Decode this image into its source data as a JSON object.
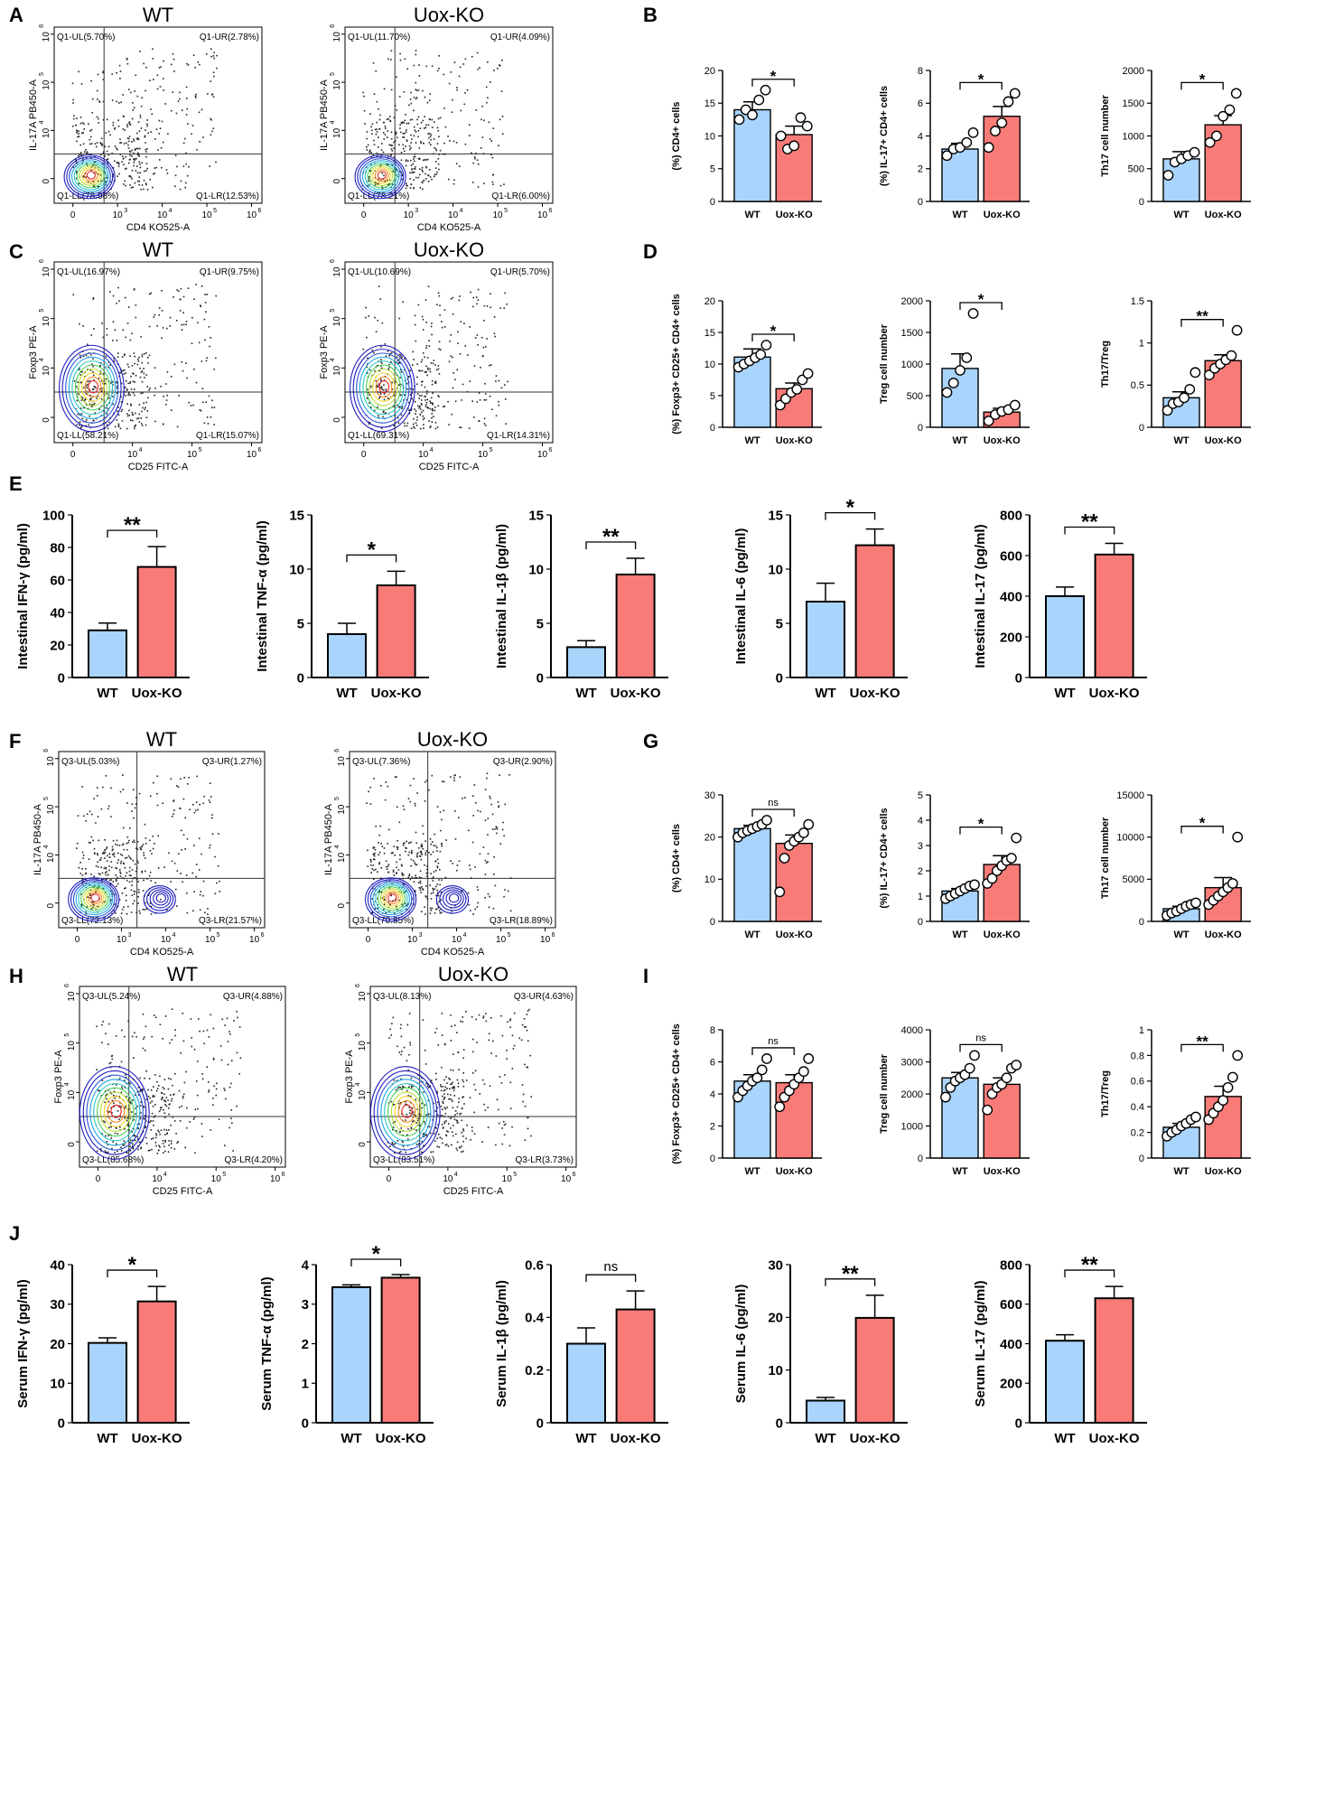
{
  "colors": {
    "wt": "#a9d4fb",
    "ko": "#f87b78",
    "axis": "#000000",
    "flow": "#1d1dbd"
  },
  "chart_data": [
    {
      "type": "flow",
      "panel": "A",
      "title": "WT",
      "xlabel": "CD4 KO525-A",
      "ylabel": "IL-17A PB450-A",
      "quads": {
        "ul": "Q1-UL(5.70%)",
        "ur": "Q1-UR(2.78%)",
        "ll": "Q1-LL(78.98%)",
        "lr": "Q1-LR(12.53%)"
      },
      "xticks": [
        "0",
        "10",
        "10",
        "10",
        "10"
      ],
      "xexp": [
        "",
        "3",
        "4",
        "5",
        "6"
      ],
      "yticks": [
        "0",
        "10",
        "10",
        "10"
      ],
      "yexp": [
        "",
        "4",
        "5",
        "6"
      ],
      "seed": 11,
      "pops": [
        [
          0.17,
          0.15,
          1
        ]
      ]
    },
    {
      "type": "flow",
      "title": "Uox-KO",
      "xlabel": "CD4 KO525-A",
      "ylabel": "IL-17A PB450-A",
      "quads": {
        "ul": "Q1-UL(11.70%)",
        "ur": "Q1-UR(4.09%)",
        "ll": "Q1-LL(78.21%)",
        "lr": "Q1-LR(6.00%)"
      },
      "xticks": [
        "0",
        "10",
        "10",
        "10",
        "10"
      ],
      "xexp": [
        "",
        "3",
        "4",
        "5",
        "6"
      ],
      "yticks": [
        "0",
        "10",
        "10",
        "10"
      ],
      "yexp": [
        "",
        "4",
        "5",
        "6"
      ],
      "seed": 23,
      "pops": [
        [
          0.17,
          0.15,
          1
        ]
      ]
    },
    {
      "type": "flow",
      "panel": "C",
      "title": "WT",
      "xlabel": "CD25 FITC-A",
      "ylabel": "Foxp3 PE-A",
      "quads": {
        "ul": "Q1-UL(16.97%)",
        "ur": "Q1-UR(9.75%)",
        "ll": "Q1-LL(58.21%)",
        "lr": "Q1-LR(15.07%)"
      },
      "xticks": [
        "0",
        "10",
        "10",
        "10"
      ],
      "xexp": [
        "",
        "4",
        "5",
        "6"
      ],
      "yticks": [
        "0",
        "10",
        "10",
        "10"
      ],
      "yexp": [
        "",
        "4",
        "5",
        "6"
      ],
      "seed": 37,
      "pops": [
        [
          0.18,
          0.3,
          1.3
        ]
      ]
    },
    {
      "type": "flow",
      "title": "Uox-KO",
      "xlabel": "CD25 FITC-A",
      "ylabel": "Foxp3 PE-A",
      "quads": {
        "ul": "Q1-UL(10.69%)",
        "ur": "Q1-UR(5.70%)",
        "ll": "Q1-LL(69.31%)",
        "lr": "Q1-LR(14.31%)"
      },
      "xticks": [
        "0",
        "10",
        "10",
        "10"
      ],
      "xexp": [
        "",
        "4",
        "5",
        "6"
      ],
      "yticks": [
        "0",
        "10",
        "10",
        "10"
      ],
      "yexp": [
        "",
        "4",
        "5",
        "6"
      ],
      "seed": 41,
      "pops": [
        [
          0.18,
          0.3,
          1.3
        ]
      ]
    },
    {
      "type": "bar",
      "panel": "B",
      "ylabel_parts": [
        [
          "(%)  CD4",
          ""
        ],
        [
          "+",
          ""
        ],
        [
          " cells",
          ""
        ]
      ],
      "ylabel": "(%)  CD4+ cells",
      "categories": [
        "WT",
        "Uox-KO"
      ],
      "values": [
        14,
        10.2
      ],
      "errors": [
        1.2,
        1.3
      ],
      "ylim": [
        0,
        20
      ],
      "yticks": [
        0,
        5,
        10,
        15,
        20
      ],
      "sig": "*",
      "points": [
        [
          12.5,
          14,
          13.2,
          15.5,
          17
        ],
        [
          10,
          8,
          8.5,
          12.8,
          11.5
        ]
      ]
    },
    {
      "type": "bar",
      "ylabel": "(%)  IL-17+ CD4+ cells",
      "categories": [
        "WT",
        "Uox-KO"
      ],
      "values": [
        3.2,
        5.2
      ],
      "errors": [
        0.35,
        0.6
      ],
      "ylim": [
        0,
        8
      ],
      "yticks": [
        0,
        2,
        4,
        6,
        8
      ],
      "sig": "*",
      "points": [
        [
          2.8,
          3.2,
          3.3,
          3.6,
          4.2
        ],
        [
          3.3,
          4.3,
          4.8,
          6.1,
          6.6
        ]
      ]
    },
    {
      "type": "bar",
      "ylabel": "Th17 cell number",
      "categories": [
        "WT",
        "Uox-KO"
      ],
      "values": [
        650,
        1170
      ],
      "errors": [
        110,
        140
      ],
      "ylim": [
        0,
        2000
      ],
      "yticks": [
        0,
        500,
        1000,
        1500,
        2000
      ],
      "sig": "*",
      "points": [
        [
          400,
          600,
          650,
          700,
          750
        ],
        [
          900,
          1000,
          1300,
          1400,
          1650
        ]
      ]
    },
    {
      "type": "bar",
      "panel": "D",
      "ylabel": "(%)  Foxp3+ CD25+ CD4+ cells",
      "categories": [
        "WT",
        "Uox-KO"
      ],
      "values": [
        11.1,
        6.1
      ],
      "errors": [
        1.3,
        0.9
      ],
      "ylim": [
        0,
        20
      ],
      "yticks": [
        0,
        5,
        10,
        15,
        20
      ],
      "sig": "*",
      "points": [
        [
          9.5,
          10,
          10.5,
          11,
          11.5,
          13
        ],
        [
          3.5,
          4.5,
          5.5,
          6,
          7.5,
          8.5
        ]
      ]
    },
    {
      "type": "bar",
      "ylabel": "Treg cell number",
      "categories": [
        "WT",
        "Uox-KO"
      ],
      "values": [
        930,
        240
      ],
      "errors": [
        230,
        60
      ],
      "ylim": [
        0,
        2000
      ],
      "yticks": [
        0,
        500,
        1000,
        1500,
        2000
      ],
      "sig": "*",
      "points": [
        [
          550,
          700,
          900,
          1100,
          1800
        ],
        [
          100,
          200,
          250,
          280,
          350
        ]
      ]
    },
    {
      "type": "bar",
      "ylabel": "Th17/Treg",
      "categories": [
        "WT",
        "Uox-KO"
      ],
      "values": [
        0.35,
        0.79
      ],
      "errors": [
        0.07,
        0.07
      ],
      "ylim": [
        0,
        1.5
      ],
      "yticks": [
        0,
        0.5,
        1.0,
        1.5
      ],
      "sig": "**",
      "points": [
        [
          0.2,
          0.28,
          0.3,
          0.35,
          0.45,
          0.65
        ],
        [
          0.62,
          0.7,
          0.75,
          0.8,
          0.85,
          1.15
        ]
      ]
    },
    {
      "type": "bar",
      "panel": "E",
      "big": true,
      "ylabel": "Intestinal IFN-γ (pg/ml)",
      "categories": [
        "WT",
        "Uox-KO"
      ],
      "values": [
        29,
        68
      ],
      "errors": [
        4.5,
        12.5
      ],
      "ylim": [
        0,
        100
      ],
      "yticks": [
        0,
        20,
        40,
        60,
        80,
        100
      ],
      "sig": "**"
    },
    {
      "type": "bar",
      "big": true,
      "ylabel": "Intestinal TNF-α (pg/ml)",
      "categories": [
        "WT",
        "Uox-KO"
      ],
      "values": [
        4,
        8.5
      ],
      "errors": [
        1,
        1.3
      ],
      "ylim": [
        0,
        15
      ],
      "yticks": [
        0,
        5,
        10,
        15
      ],
      "sig": "*"
    },
    {
      "type": "bar",
      "big": true,
      "ylabel": "Intestinal IL-1β (pg/ml)",
      "categories": [
        "WT",
        "Uox-KO"
      ],
      "values": [
        2.8,
        9.5
      ],
      "errors": [
        0.6,
        1.5
      ],
      "ylim": [
        0,
        15
      ],
      "yticks": [
        0,
        5,
        10,
        15
      ],
      "sig": "**"
    },
    {
      "type": "bar",
      "big": true,
      "ylabel": "Intestinal IL-6 (pg/ml)",
      "categories": [
        "WT",
        "Uox-KO"
      ],
      "values": [
        7,
        12.2
      ],
      "errors": [
        1.7,
        1.5
      ],
      "ylim": [
        0,
        15
      ],
      "yticks": [
        0,
        5,
        10,
        15
      ],
      "sig": "*"
    },
    {
      "type": "bar",
      "big": true,
      "ylabel": "Intestinal IL-17 (pg/ml)",
      "categories": [
        "WT",
        "Uox-KO"
      ],
      "values": [
        400,
        605
      ],
      "errors": [
        45,
        55
      ],
      "ylim": [
        0,
        800
      ],
      "yticks": [
        0,
        200,
        400,
        600,
        800
      ],
      "sig": "**"
    },
    {
      "type": "flow",
      "panel": "F",
      "title": "WT",
      "xlabel": "CD4 KO525-A",
      "ylabel": "IL-17A PB450-A",
      "quads": {
        "ul": "Q3-UL(5.03%)",
        "ur": "Q3-UR(1.27%)",
        "ll": "Q3-LL(72.13%)",
        "lr": "Q3-LR(21.57%)"
      },
      "xticks": [
        "0",
        "10",
        "10",
        "10",
        "10"
      ],
      "xexp": [
        "",
        "3",
        "4",
        "5",
        "6"
      ],
      "yticks": [
        "0",
        "10",
        "10",
        "10"
      ],
      "yexp": [
        "",
        "4",
        "5",
        "6"
      ],
      "seed": 53,
      "pops": [
        [
          0.17,
          0.16,
          1
        ],
        [
          0.49,
          0.16,
          0.6
        ]
      ],
      "vline": 0.38
    },
    {
      "type": "flow",
      "title": "Uox-KO",
      "xlabel": "CD4 KO525-A",
      "ylabel": "IL-17A PB450-A",
      "quads": {
        "ul": "Q3-UL(7.36%)",
        "ur": "Q3-UR(2.90%)",
        "ll": "Q3-LL(70.85%)",
        "lr": "Q3-LR(18.89%)"
      },
      "xticks": [
        "0",
        "10",
        "10",
        "10",
        "10"
      ],
      "xexp": [
        "",
        "3",
        "4",
        "5",
        "6"
      ],
      "yticks": [
        "0",
        "10",
        "10",
        "10"
      ],
      "yexp": [
        "",
        "4",
        "5",
        "6"
      ],
      "seed": 67,
      "pops": [
        [
          0.2,
          0.16,
          1
        ],
        [
          0.5,
          0.16,
          0.6
        ]
      ],
      "vline": 0.38
    },
    {
      "type": "bar",
      "panel": "G",
      "ylabel": "(%)  CD4+ cells",
      "categories": [
        "WT",
        "Uox-KO"
      ],
      "values": [
        22,
        18.5
      ],
      "errors": [
        0.8,
        2
      ],
      "ylim": [
        0,
        30
      ],
      "yticks": [
        0,
        10,
        20,
        30
      ],
      "sig": "ns",
      "points": [
        [
          20,
          21,
          21.5,
          22,
          22.5,
          23,
          24
        ],
        [
          7,
          15,
          18,
          19,
          20,
          21,
          23
        ]
      ]
    },
    {
      "type": "bar",
      "ylabel": "(%)  IL-17+ CD4+ cells",
      "categories": [
        "WT",
        "Uox-KO"
      ],
      "values": [
        1.2,
        2.25
      ],
      "errors": [
        0.1,
        0.35
      ],
      "ylim": [
        0,
        5
      ],
      "yticks": [
        0,
        1,
        2,
        3,
        4,
        5
      ],
      "sig": "*",
      "points": [
        [
          0.9,
          1,
          1.1,
          1.2,
          1.3,
          1.4,
          1.45
        ],
        [
          1.5,
          1.7,
          2,
          2.2,
          2.4,
          2.5,
          3.3
        ]
      ]
    },
    {
      "type": "bar",
      "ylabel": "Th17 cell number",
      "categories": [
        "WT",
        "Uox-KO"
      ],
      "values": [
        1500,
        4000
      ],
      "errors": [
        300,
        1200
      ],
      "ylim": [
        0,
        15000
      ],
      "yticks": [
        0,
        5000,
        10000,
        15000
      ],
      "sig": "*",
      "points": [
        [
          700,
          1000,
          1200,
          1500,
          1800,
          2000,
          2200
        ],
        [
          2000,
          2500,
          3000,
          3500,
          4000,
          4500,
          10000
        ]
      ]
    },
    {
      "type": "flow",
      "panel": "H",
      "title": "WT",
      "xlabel": "CD25 FITC-A",
      "ylabel": "Foxp3 PE-A",
      "quads": {
        "ul": "Q3-UL(5.24%)",
        "ur": "Q3-UR(4.88%)",
        "ll": "Q3-LL(85.68%)",
        "lr": "Q3-LR(4.20%)"
      },
      "xticks": [
        "0",
        "10",
        "10",
        "10"
      ],
      "xexp": [
        "",
        "4",
        "5",
        "6"
      ],
      "yticks": [
        "0",
        "10",
        "10",
        "10"
      ],
      "yexp": [
        "",
        "4",
        "5",
        "6"
      ],
      "seed": 79,
      "pops": [
        [
          0.17,
          0.3,
          1.4
        ]
      ]
    },
    {
      "type": "flow",
      "title": "Uox-KO",
      "xlabel": "CD25 FITC-A",
      "ylabel": "Foxp3 PE-A",
      "quads": {
        "ul": "Q3-UL(8.13%)",
        "ur": "Q3-UR(4.63%)",
        "ll": "Q3-LL(83.51%)",
        "lr": "Q3-LR(3.73%)"
      },
      "xticks": [
        "0",
        "10",
        "10",
        "10"
      ],
      "xexp": [
        "",
        "4",
        "5",
        "6"
      ],
      "yticks": [
        "0",
        "10",
        "10",
        "10"
      ],
      "yexp": [
        "",
        "4",
        "5",
        "6"
      ],
      "seed": 83,
      "pops": [
        [
          0.17,
          0.3,
          1.4
        ]
      ]
    },
    {
      "type": "bar",
      "panel": "I",
      "ylabel": "(%)  Foxp3+ CD25+ CD4+ cells",
      "categories": [
        "WT",
        "Uox-KO"
      ],
      "values": [
        4.8,
        4.7
      ],
      "errors": [
        0.4,
        0.5
      ],
      "ylim": [
        0,
        8
      ],
      "yticks": [
        0,
        2,
        4,
        6,
        8
      ],
      "sig": "ns",
      "points": [
        [
          3.8,
          4.2,
          4.5,
          4.8,
          5,
          5.5,
          6.2
        ],
        [
          3.2,
          3.8,
          4.2,
          4.6,
          5,
          5.4,
          6.2
        ]
      ]
    },
    {
      "type": "bar",
      "ylabel": "Treg cell number",
      "categories": [
        "WT",
        "Uox-KO"
      ],
      "values": [
        2500,
        2300
      ],
      "errors": [
        170,
        200
      ],
      "ylim": [
        0,
        4000
      ],
      "yticks": [
        0,
        1000,
        2000,
        3000,
        4000
      ],
      "sig": "ns",
      "points": [
        [
          1900,
          2200,
          2400,
          2500,
          2600,
          2800,
          3200
        ],
        [
          1500,
          2000,
          2200,
          2300,
          2500,
          2800,
          2900
        ]
      ]
    },
    {
      "type": "bar",
      "ylabel": "Th17/Treg",
      "categories": [
        "WT",
        "Uox-KO"
      ],
      "values": [
        0.24,
        0.48
      ],
      "errors": [
        0.03,
        0.08
      ],
      "ylim": [
        0,
        1.0
      ],
      "yticks": [
        0,
        0.2,
        0.4,
        0.6,
        0.8,
        1.0
      ],
      "sig": "**",
      "points": [
        [
          0.17,
          0.2,
          0.22,
          0.25,
          0.27,
          0.3,
          0.32
        ],
        [
          0.3,
          0.35,
          0.4,
          0.45,
          0.55,
          0.63,
          0.8
        ]
      ]
    },
    {
      "type": "bar",
      "panel": "J",
      "big": true,
      "ylabel": "Serum IFN-γ (pg/ml)",
      "categories": [
        "WT",
        "Uox-KO"
      ],
      "values": [
        20.2,
        30.7
      ],
      "errors": [
        1.3,
        3.8
      ],
      "ylim": [
        0,
        40
      ],
      "yticks": [
        0,
        10,
        20,
        30,
        40
      ],
      "sig": "*"
    },
    {
      "type": "bar",
      "big": true,
      "ylabel": "Serum TNF-α (pg/ml)",
      "categories": [
        "WT",
        "Uox-KO"
      ],
      "values": [
        3.43,
        3.67
      ],
      "errors": [
        0.06,
        0.08
      ],
      "ylim": [
        0,
        4
      ],
      "yticks": [
        0,
        1,
        2,
        3,
        4
      ],
      "sig": "*"
    },
    {
      "type": "bar",
      "big": true,
      "ylabel": "Serum IL-1β (pg/ml)",
      "categories": [
        "WT",
        "Uox-KO"
      ],
      "values": [
        0.3,
        0.43
      ],
      "errors": [
        0.06,
        0.07
      ],
      "ylim": [
        0,
        0.6
      ],
      "yticks": [
        0,
        0.2,
        0.4,
        0.6
      ],
      "sig": "ns"
    },
    {
      "type": "bar",
      "big": true,
      "ylabel": "Serum IL-6 (pg/ml)",
      "categories": [
        "WT",
        "Uox-KO"
      ],
      "values": [
        4.2,
        19.9
      ],
      "errors": [
        0.6,
        4.3
      ],
      "ylim": [
        0,
        30
      ],
      "yticks": [
        0,
        10,
        20,
        30
      ],
      "sig": "**"
    },
    {
      "type": "bar",
      "big": true,
      "ylabel": "Serum IL-17 (pg/ml)",
      "categories": [
        "WT",
        "Uox-KO"
      ],
      "values": [
        415,
        630
      ],
      "errors": [
        30,
        60
      ],
      "ylim": [
        0,
        800
      ],
      "yticks": [
        0,
        200,
        400,
        600,
        800
      ],
      "sig": "**"
    }
  ]
}
